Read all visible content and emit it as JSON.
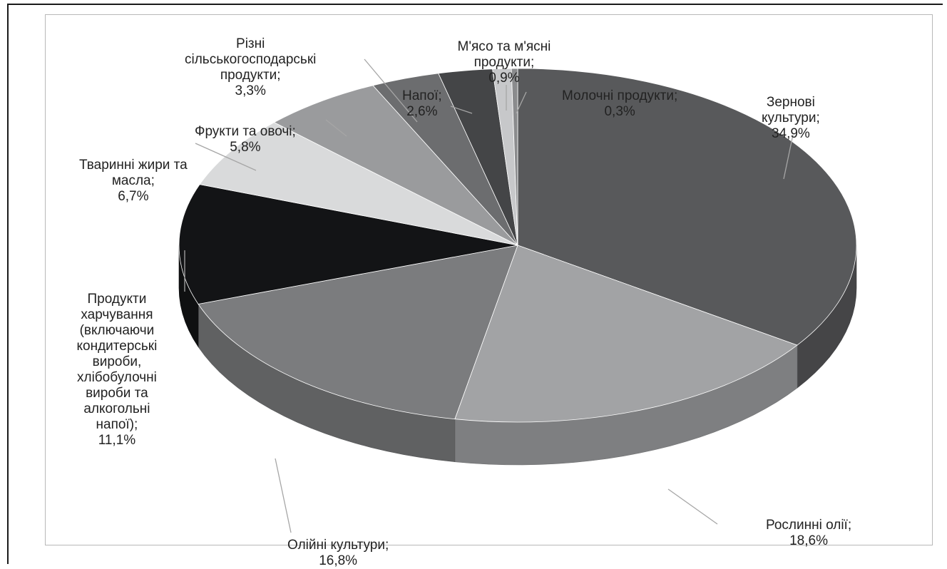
{
  "chart_data": {
    "type": "pie",
    "style": "3d",
    "label_format": "{name}; {value}%",
    "slices": [
      {
        "name": "Зернові культури",
        "value": 34.9,
        "color": "#58595b",
        "label_lines": [
          "Зернові",
          "культури;",
          "34,9%"
        ]
      },
      {
        "name": "Рослинні олії",
        "value": 18.6,
        "color": "#a2a3a5",
        "label_lines": [
          "Рослинні олії;",
          "18,6%"
        ]
      },
      {
        "name": "Олійні культури",
        "value": 16.8,
        "color": "#7b7c7e",
        "label_lines": [
          "Олійні культури;",
          "16,8%"
        ]
      },
      {
        "name": "Продукти харчування (включаючи кондитерські вироби, хлібобулочні вироби та алкогольні напої)",
        "value": 11.1,
        "color": "#131416",
        "label_lines": [
          "Продукти",
          "харчування",
          "(включаючи",
          "кондитерські",
          "вироби,",
          "хлібобулочні",
          "вироби та",
          "алкогольні",
          "напої);",
          "11,1%"
        ]
      },
      {
        "name": "Тваринні жири та масла",
        "value": 6.7,
        "color": "#d9dadb",
        "label_lines": [
          "Тваринні жири та",
          "масла;",
          "6,7%"
        ]
      },
      {
        "name": "Фрукти та овочі",
        "value": 5.8,
        "color": "#9a9b9d",
        "label_lines": [
          "Фрукти та овочі;",
          "5,8%"
        ]
      },
      {
        "name": "Різні сільськогосподарські продукти",
        "value": 3.3,
        "color": "#6c6d6f",
        "label_lines": [
          "Різні",
          "сільськогосподарські",
          "продукти;",
          "3,3%"
        ]
      },
      {
        "name": "Напої",
        "value": 2.6,
        "color": "#444547",
        "label_lines": [
          "Напої;",
          "2,6%"
        ]
      },
      {
        "name": "М'ясо та м'ясні продукти",
        "value": 0.9,
        "color": "#c7c8ca",
        "label_lines": [
          "М'ясо та м'ясні",
          "продукти;",
          "0,9%"
        ]
      },
      {
        "name": "Молочні продукти",
        "value": 0.3,
        "color": "#8a8b8d",
        "label_lines": [
          "Молочні продукти;",
          "0,3%"
        ]
      }
    ]
  }
}
